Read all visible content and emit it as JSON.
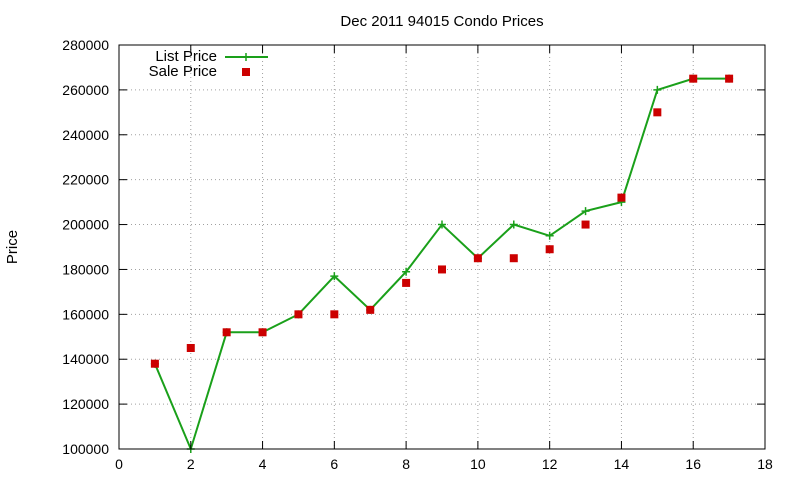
{
  "chart_data": {
    "type": "line",
    "title": "Dec 2011 94015 Condo Prices",
    "xlabel": "",
    "ylabel": "Price",
    "xlim": [
      0,
      18
    ],
    "ylim": [
      100000,
      280000
    ],
    "xticks": [
      0,
      2,
      4,
      6,
      8,
      10,
      12,
      14,
      16,
      18
    ],
    "yticks": [
      100000,
      120000,
      140000,
      160000,
      180000,
      200000,
      220000,
      240000,
      260000,
      280000
    ],
    "grid": true,
    "legend_position": "top-left",
    "series": [
      {
        "name": "List Price",
        "style": "line-with-plus-markers",
        "color": "#1aa01a",
        "x": [
          1,
          2,
          3,
          4,
          5,
          6,
          7,
          8,
          9,
          10,
          11,
          12,
          13,
          14,
          15,
          16,
          17
        ],
        "y": [
          138000,
          100000,
          152000,
          152000,
          160000,
          177000,
          162000,
          179000,
          200000,
          185000,
          200000,
          195000,
          206000,
          210000,
          260000,
          265000,
          265000
        ]
      },
      {
        "name": "Sale Price",
        "style": "square-markers",
        "color": "#cc0000",
        "x": [
          1,
          2,
          3,
          4,
          5,
          6,
          7,
          8,
          9,
          10,
          11,
          12,
          13,
          14,
          15,
          16,
          17
        ],
        "y": [
          138000,
          145000,
          152000,
          152000,
          160000,
          160000,
          162000,
          174000,
          180000,
          185000,
          185000,
          189000,
          200000,
          212000,
          250000,
          265000,
          265000
        ]
      }
    ]
  }
}
